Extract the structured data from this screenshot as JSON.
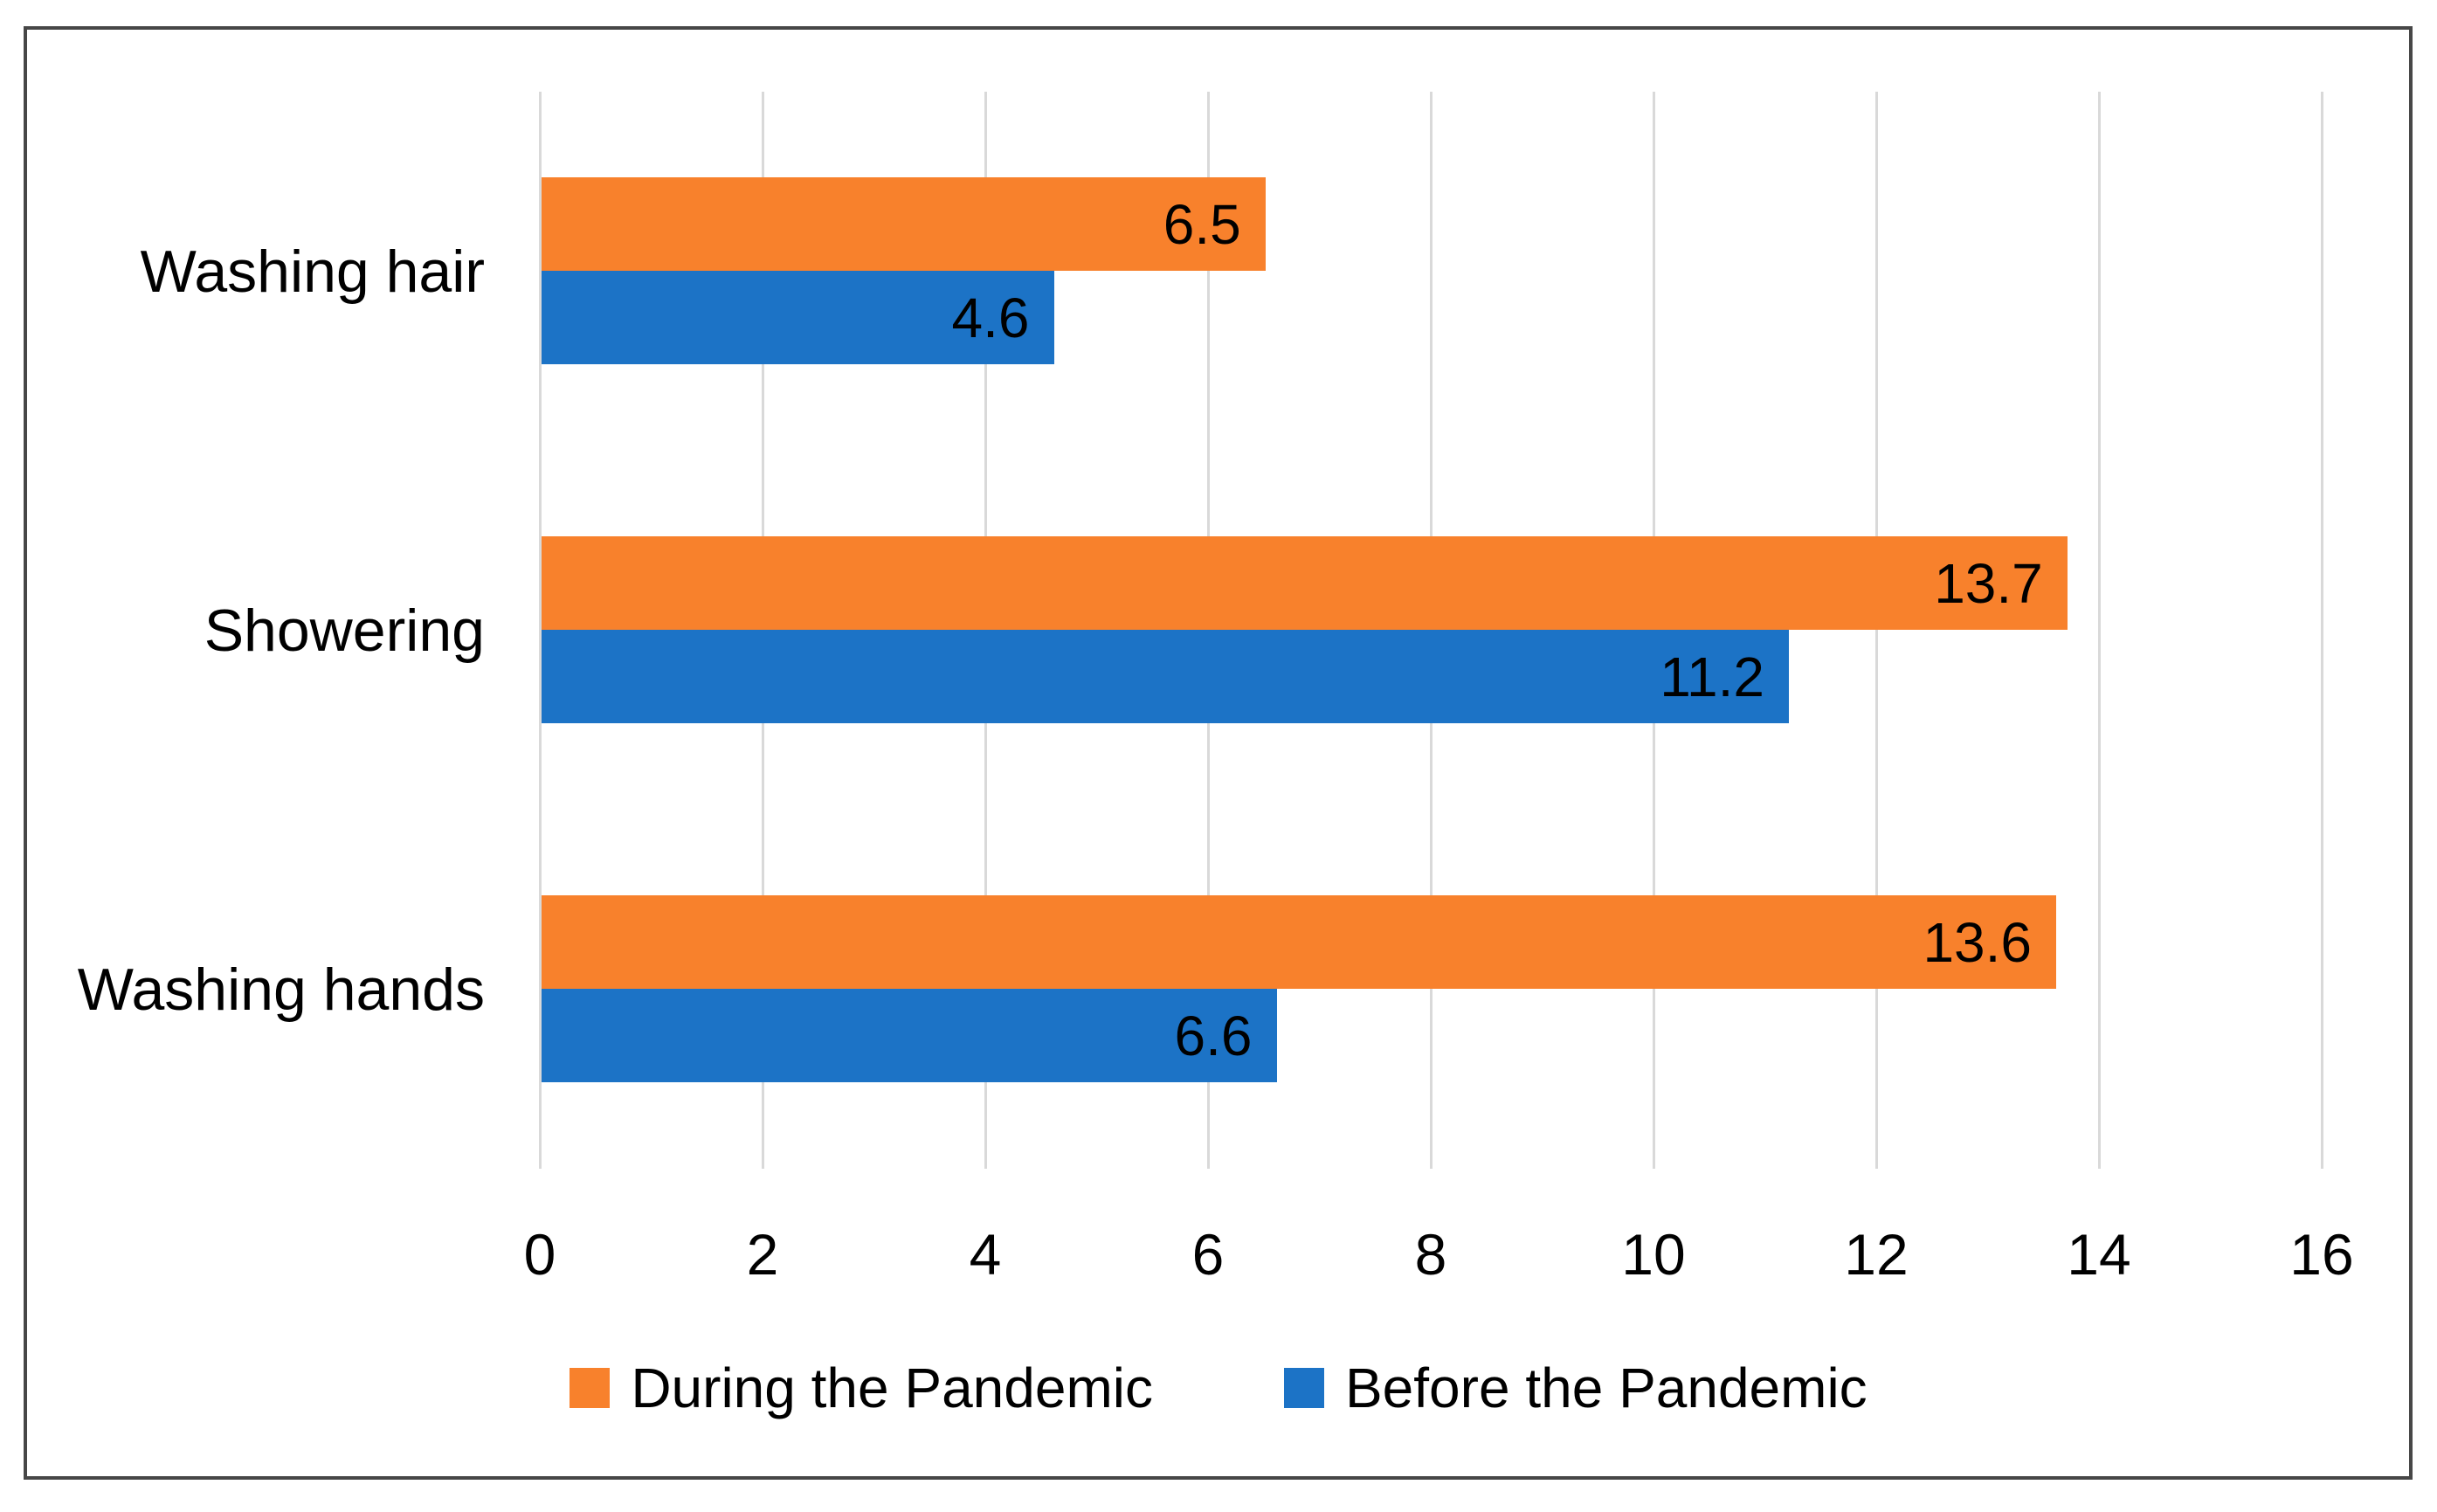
{
  "chart_data": {
    "type": "bar",
    "orientation": "horizontal",
    "title": "",
    "xlabel": "",
    "ylabel": "",
    "categories": [
      "Washing hair",
      "Showering",
      "Washing hands"
    ],
    "series": [
      {
        "name": "During the Pandemic",
        "color": "#F8812C",
        "values": [
          6.5,
          13.7,
          13.6
        ]
      },
      {
        "name": "Before the Pandemic",
        "color": "#1C73C6",
        "values": [
          4.6,
          11.2,
          6.6
        ]
      }
    ],
    "data_labels": [
      "6.5",
      "4.6",
      "13.7",
      "11.2",
      "13.6",
      "6.6"
    ],
    "xlim": [
      0,
      16
    ],
    "xticks": [
      "0",
      "2",
      "4",
      "6",
      "8",
      "10",
      "12",
      "14",
      "16"
    ],
    "grid": "vertical-on",
    "gridline_color": "#D9D9D9",
    "frame_border_color": "#474747",
    "legend_position": "bottom",
    "label_position": "inside-end"
  }
}
